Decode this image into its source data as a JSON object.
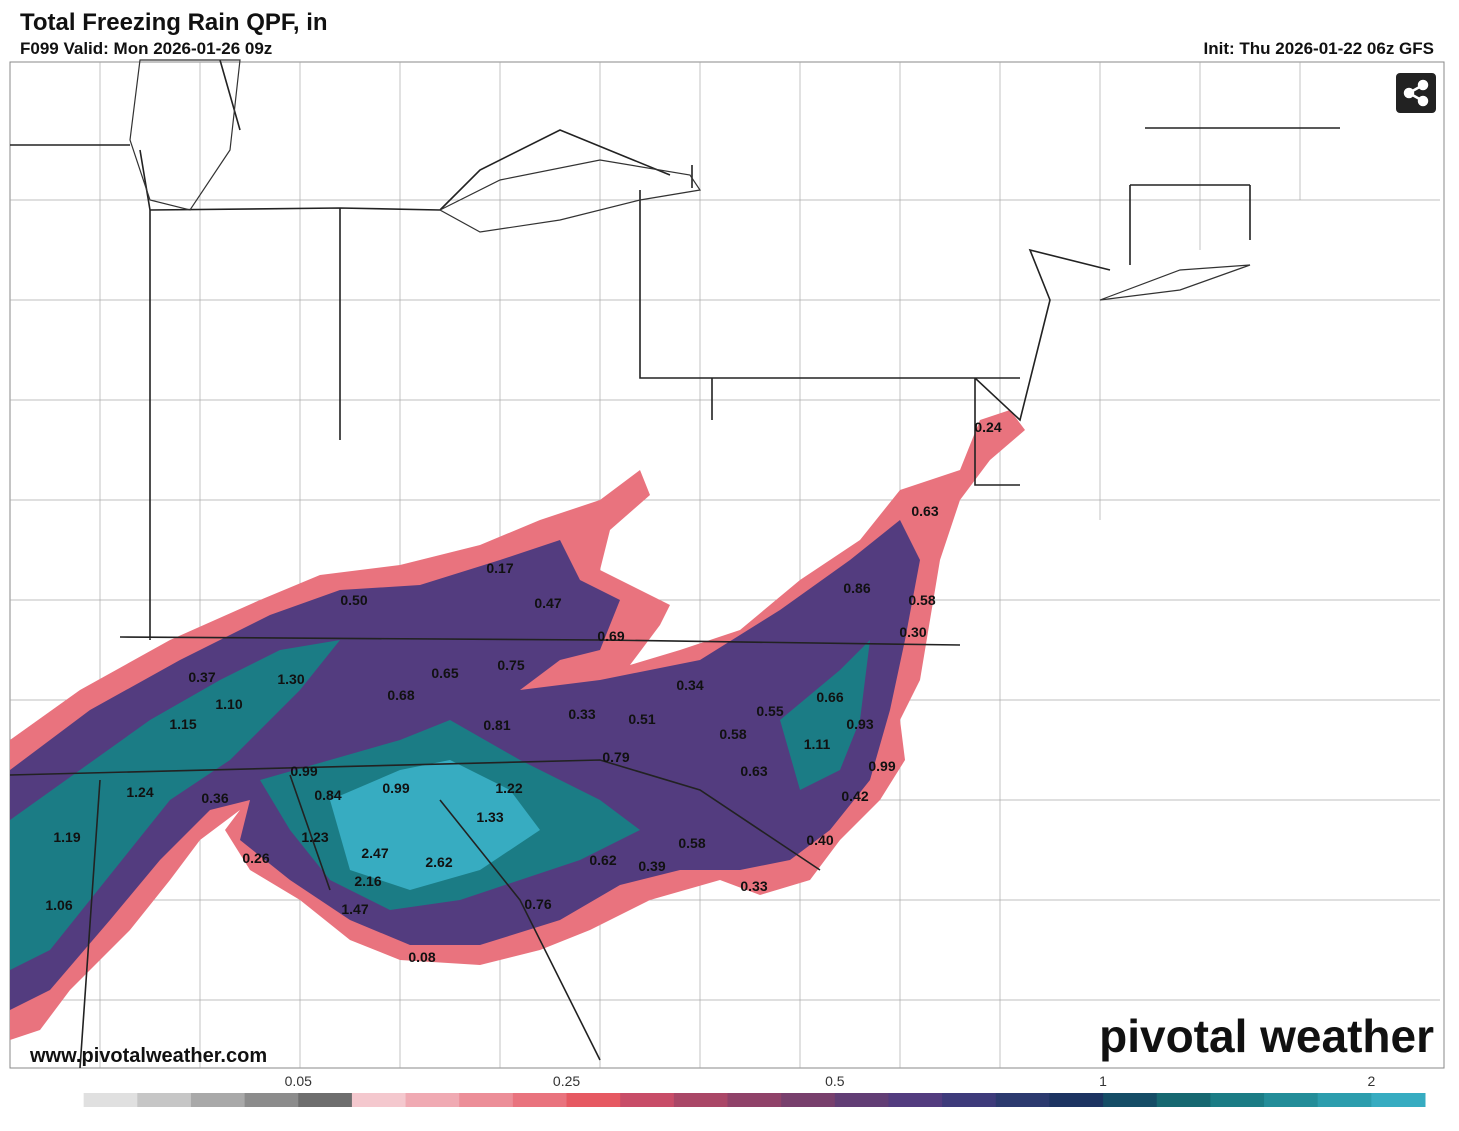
{
  "header": {
    "title": "Total Freezing Rain QPF, in",
    "subtitle": "F099 Valid: Mon 2026-01-26 09z",
    "init": "Init: Thu 2026-01-22 06z GFS"
  },
  "map": {
    "labels": [
      "0.24",
      "0.63",
      "0.17",
      "0.47",
      "0.50",
      "0.86",
      "0.58",
      "0.30",
      "0.69",
      "0.37",
      "1.30",
      "0.65",
      "0.75",
      "0.34",
      "0.68",
      "1.10",
      "0.66",
      "0.55",
      "1.15",
      "0.33",
      "0.51",
      "0.81",
      "0.93",
      "0.58",
      "1.11",
      "0.79",
      "0.99",
      "0.63",
      "0.99",
      "1.24",
      "0.36",
      "0.84",
      "0.99",
      "1.22",
      "0.42",
      "1.33",
      "1.19",
      "1.23",
      "0.40",
      "0.58",
      "0.26",
      "2.47",
      "0.62",
      "2.62",
      "0.39",
      "2.16",
      "0.33",
      "1.06",
      "1.47",
      "0.76",
      "0.08"
    ],
    "watermark": "pivotal weather",
    "url": "www.pivotalweather.com"
  },
  "colorbar": {
    "colors": [
      "#ffffff",
      "#e0e0e0",
      "#c6c6c6",
      "#a9a9a9",
      "#8c8c8c",
      "#6e6e6e",
      "#f4c8ce",
      "#f0aab3",
      "#ec8e98",
      "#e9737e",
      "#e65962",
      "#c84d68",
      "#aa4767",
      "#904269",
      "#78406d",
      "#623e75",
      "#533c7f",
      "#3e3b7b",
      "#2c3a6f",
      "#1c3461",
      "#154d66",
      "#166871",
      "#1b7c85",
      "#238d99",
      "#2c9dad",
      "#37acc1"
    ],
    "ticks": [
      "0.05",
      "0.25",
      "0.5",
      "1",
      "2"
    ]
  }
}
